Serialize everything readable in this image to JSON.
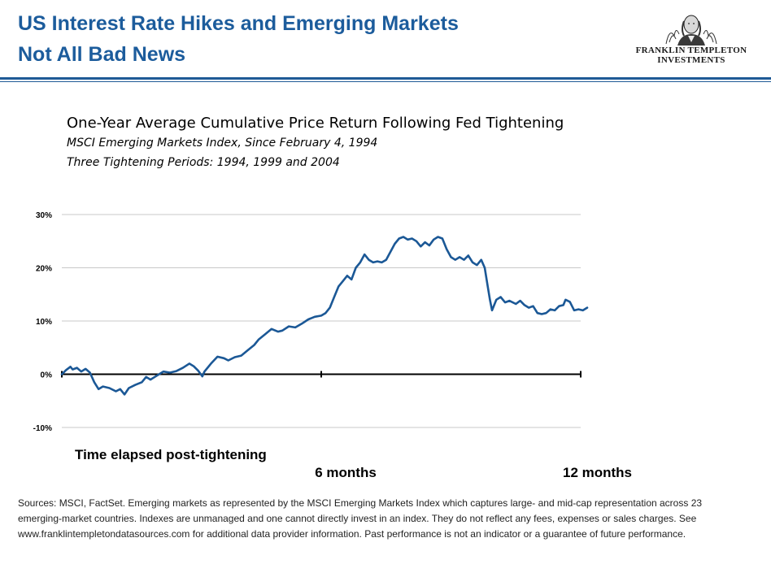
{
  "header": {
    "title_line1": "US Interest Rate Hikes and Emerging Markets",
    "title_line2": "Not All Bad News",
    "logo_line1": "FRANKLIN TEMPLETON",
    "logo_line2": "INVESTMENTS"
  },
  "colors": {
    "title": "#1c5c9c",
    "rule": "#1f5a96",
    "series": "#1b5896",
    "grid": "#c8c8c8"
  },
  "footnote": "Sources: MSCI, FactSet. Emerging markets as represented by the MSCI Emerging Markets Index which captures large- and mid-cap representation across 23 emerging-market countries. Indexes are unmanaged and one cannot directly invest in an index. They do not reflect any fees, expenses or sales charges. See  www.franklintempletondatasources.com for additional data provider information. Past performance is not an indicator or a guarantee of future performance.",
  "chart_data": {
    "type": "line",
    "title": "One-Year Average Cumulative Price Return Following Fed Tightening",
    "subtitle_line1": "MSCI Emerging Markets Index, Since February 4, 1994",
    "subtitle_line2": "Three  Tightening Periods: 1994, 1999 and 2004",
    "xlabel": "Time elapsed post-tightening",
    "x_unit": "months",
    "xlim": [
      0,
      12
    ],
    "x_tick_labels": [
      {
        "x": 6,
        "label": "6 months"
      },
      {
        "x": 12,
        "label": "12 months"
      }
    ],
    "ylim": [
      -10,
      30
    ],
    "y_ticks": [
      -10,
      0,
      10,
      20,
      30
    ],
    "y_tick_labels": [
      "-10%",
      "0%",
      "10%",
      "20%",
      "30%"
    ],
    "grid": true,
    "legend": "none",
    "series": [
      {
        "points": [
          [
            0,
            0
          ],
          [
            0.1,
            0.8
          ],
          [
            0.2,
            1.4
          ],
          [
            0.25,
            0.9
          ],
          [
            0.35,
            1.2
          ],
          [
            0.45,
            0.5
          ],
          [
            0.55,
            1.0
          ],
          [
            0.65,
            0.3
          ],
          [
            0.75,
            -1.5
          ],
          [
            0.85,
            -2.8
          ],
          [
            0.95,
            -2.3
          ],
          [
            1.1,
            -2.6
          ],
          [
            1.25,
            -3.2
          ],
          [
            1.35,
            -2.8
          ],
          [
            1.45,
            -3.8
          ],
          [
            1.55,
            -2.6
          ],
          [
            1.7,
            -2.0
          ],
          [
            1.85,
            -1.5
          ],
          [
            1.95,
            -0.5
          ],
          [
            2.05,
            -1.0
          ],
          [
            2.15,
            -0.5
          ],
          [
            2.25,
            0.0
          ],
          [
            2.35,
            0.5
          ],
          [
            2.5,
            0.3
          ],
          [
            2.65,
            0.6
          ],
          [
            2.8,
            1.2
          ],
          [
            2.95,
            2.0
          ],
          [
            3.05,
            1.5
          ],
          [
            3.15,
            0.7
          ],
          [
            3.25,
            -0.4
          ],
          [
            3.3,
            0.5
          ],
          [
            3.45,
            2.0
          ],
          [
            3.6,
            3.3
          ],
          [
            3.75,
            3.0
          ],
          [
            3.85,
            2.6
          ],
          [
            4.0,
            3.2
          ],
          [
            4.15,
            3.5
          ],
          [
            4.3,
            4.5
          ],
          [
            4.45,
            5.5
          ],
          [
            4.55,
            6.5
          ],
          [
            4.7,
            7.5
          ],
          [
            4.85,
            8.5
          ],
          [
            5.0,
            8.0
          ],
          [
            5.1,
            8.2
          ],
          [
            5.25,
            9.0
          ],
          [
            5.4,
            8.8
          ],
          [
            5.55,
            9.5
          ],
          [
            5.7,
            10.3
          ],
          [
            5.85,
            10.8
          ],
          [
            6.0,
            11.0
          ],
          [
            6.1,
            11.5
          ],
          [
            6.2,
            12.5
          ],
          [
            6.3,
            14.5
          ],
          [
            6.4,
            16.5
          ],
          [
            6.5,
            17.5
          ],
          [
            6.6,
            18.5
          ],
          [
            6.7,
            17.8
          ],
          [
            6.8,
            20.0
          ],
          [
            6.9,
            21.0
          ],
          [
            7.0,
            22.5
          ],
          [
            7.1,
            21.5
          ],
          [
            7.2,
            21.0
          ],
          [
            7.3,
            21.2
          ],
          [
            7.4,
            21.0
          ],
          [
            7.5,
            21.5
          ],
          [
            7.6,
            23.0
          ],
          [
            7.7,
            24.5
          ],
          [
            7.8,
            25.5
          ],
          [
            7.9,
            25.8
          ],
          [
            8.0,
            25.3
          ],
          [
            8.1,
            25.5
          ],
          [
            8.2,
            25.0
          ],
          [
            8.3,
            24.0
          ],
          [
            8.4,
            24.8
          ],
          [
            8.5,
            24.2
          ],
          [
            8.6,
            25.3
          ],
          [
            8.7,
            25.8
          ],
          [
            8.8,
            25.5
          ],
          [
            8.9,
            23.5
          ],
          [
            9.0,
            22.0
          ],
          [
            9.1,
            21.5
          ],
          [
            9.2,
            22.0
          ],
          [
            9.3,
            21.5
          ],
          [
            9.4,
            22.3
          ],
          [
            9.5,
            21.0
          ],
          [
            9.6,
            20.5
          ],
          [
            9.7,
            21.5
          ],
          [
            9.78,
            20.0
          ],
          [
            9.85,
            16.5
          ],
          [
            9.9,
            14.0
          ],
          [
            9.95,
            12.0
          ],
          [
            10.05,
            14.0
          ],
          [
            10.15,
            14.5
          ],
          [
            10.25,
            13.5
          ],
          [
            10.35,
            13.8
          ],
          [
            10.5,
            13.2
          ],
          [
            10.6,
            13.8
          ],
          [
            10.7,
            13.0
          ],
          [
            10.8,
            12.5
          ],
          [
            10.9,
            12.8
          ],
          [
            11.0,
            11.5
          ],
          [
            11.1,
            11.3
          ],
          [
            11.2,
            11.5
          ],
          [
            11.3,
            12.2
          ],
          [
            11.4,
            12.0
          ],
          [
            11.5,
            12.8
          ],
          [
            11.6,
            13.0
          ],
          [
            11.65,
            14.0
          ],
          [
            11.75,
            13.6
          ],
          [
            11.85,
            12.0
          ],
          [
            11.95,
            12.2
          ],
          [
            12.05,
            12.0
          ],
          [
            12.15,
            12.5
          ]
        ]
      }
    ]
  }
}
